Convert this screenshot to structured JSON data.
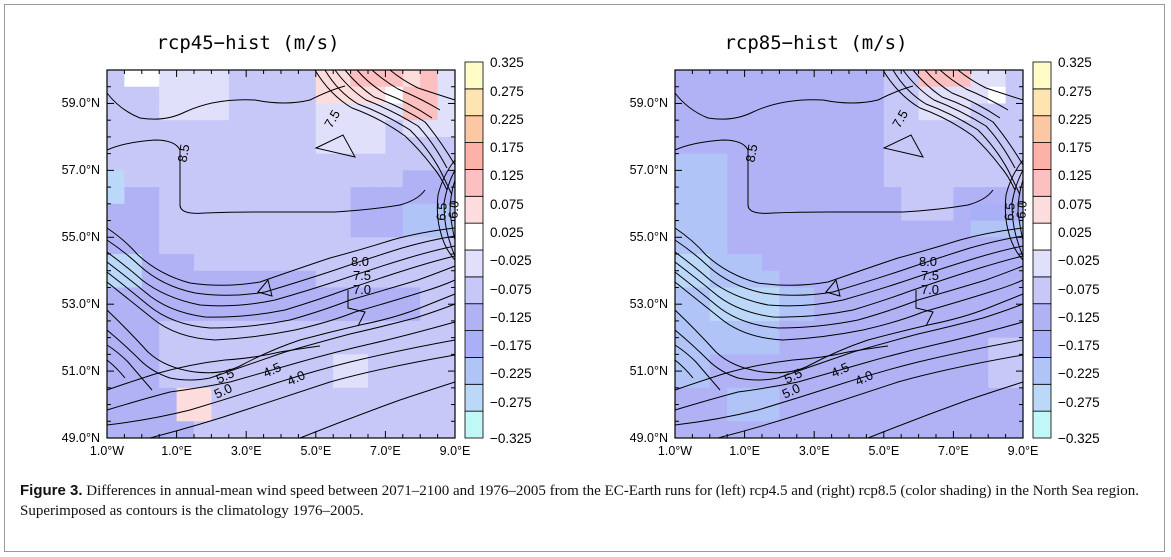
{
  "chart_data": [
    {
      "type": "heatmap",
      "title": "rcp45−hist (m/s)",
      "x_tick_labels": [
        "1.0°W",
        "1.0°E",
        "3.0°E",
        "5.0°E",
        "7.0°E",
        "9.0°E"
      ],
      "y_tick_labels": [
        "49.0°N",
        "51.0°N",
        "53.0°N",
        "55.0°N",
        "57.0°N",
        "59.0°N"
      ],
      "xlim": [
        -1.0,
        9.0
      ],
      "ylim": [
        49.0,
        60.0
      ],
      "grid_x": [
        -1.0,
        -0.5,
        0.0,
        0.5,
        1.0,
        1.5,
        2.0,
        2.5,
        3.0,
        3.5,
        4.0,
        4.5,
        5.0,
        5.5,
        6.0,
        6.5,
        7.0,
        7.5,
        8.0,
        8.5,
        9.0
      ],
      "grid_y": [
        49.0,
        49.5,
        50.0,
        50.5,
        51.0,
        51.5,
        52.0,
        52.5,
        53.0,
        53.5,
        54.0,
        54.5,
        55.0,
        55.5,
        56.0,
        56.5,
        57.0,
        57.5,
        58.0,
        58.5,
        59.0,
        59.5,
        60.0
      ],
      "cell_units": "m/s",
      "cells_note": "rows from north (60N) to south (49N), 0.5 degree cells",
      "cells": [
        [
          -0.09,
          0.01,
          0.01,
          -0.03,
          -0.03,
          -0.03,
          -0.03,
          -0.09,
          -0.09,
          -0.09,
          -0.09,
          -0.09,
          0.04,
          0.07,
          0.09,
          0.09,
          0.09,
          0.07,
          0.09,
          -0.03
        ],
        [
          -0.09,
          -0.09,
          -0.09,
          -0.03,
          -0.03,
          -0.03,
          -0.03,
          -0.09,
          -0.09,
          -0.09,
          -0.09,
          -0.09,
          0.04,
          0.04,
          0.04,
          0.04,
          0.02,
          0.12,
          0.12,
          -0.03
        ],
        [
          -0.09,
          -0.09,
          -0.09,
          -0.03,
          -0.03,
          -0.03,
          -0.03,
          -0.09,
          -0.09,
          -0.09,
          -0.09,
          -0.09,
          -0.03,
          -0.03,
          -0.03,
          -0.03,
          -0.03,
          0.12,
          0.12,
          -0.03
        ],
        [
          -0.09,
          -0.09,
          -0.09,
          -0.09,
          -0.09,
          -0.09,
          -0.09,
          -0.09,
          -0.09,
          -0.09,
          -0.09,
          -0.09,
          -0.03,
          -0.03,
          -0.03,
          -0.03,
          -0.09,
          -0.03,
          -0.03,
          -0.03
        ],
        [
          -0.09,
          -0.09,
          -0.09,
          -0.09,
          -0.09,
          -0.09,
          -0.09,
          -0.09,
          -0.09,
          -0.09,
          -0.09,
          -0.09,
          -0.03,
          -0.03,
          -0.03,
          -0.03,
          -0.09,
          -0.09,
          -0.09,
          -0.09
        ],
        [
          -0.09,
          -0.09,
          -0.09,
          -0.09,
          -0.09,
          -0.09,
          -0.09,
          -0.09,
          -0.09,
          -0.09,
          -0.09,
          -0.09,
          -0.09,
          -0.09,
          -0.09,
          -0.09,
          -0.09,
          -0.09,
          -0.09,
          -0.09
        ],
        [
          -0.3,
          -0.09,
          -0.09,
          -0.09,
          -0.09,
          -0.09,
          -0.09,
          -0.09,
          -0.09,
          -0.09,
          -0.09,
          -0.09,
          -0.09,
          -0.09,
          -0.09,
          -0.09,
          -0.09,
          -0.15,
          -0.15,
          -0.15
        ],
        [
          -0.3,
          -0.15,
          -0.15,
          -0.09,
          -0.09,
          -0.09,
          -0.09,
          -0.09,
          -0.09,
          -0.09,
          -0.09,
          -0.09,
          -0.09,
          -0.09,
          -0.15,
          -0.15,
          -0.15,
          -0.15,
          -0.15,
          -0.15
        ],
        [
          -0.15,
          -0.15,
          -0.15,
          -0.09,
          -0.09,
          -0.09,
          -0.09,
          -0.09,
          -0.09,
          -0.09,
          -0.09,
          -0.09,
          -0.09,
          -0.09,
          -0.15,
          -0.15,
          -0.15,
          -0.26,
          -0.26,
          -0.26
        ],
        [
          -0.15,
          -0.15,
          -0.15,
          -0.09,
          -0.09,
          -0.09,
          -0.09,
          -0.09,
          -0.09,
          -0.09,
          -0.09,
          -0.09,
          -0.09,
          -0.09,
          -0.15,
          -0.15,
          -0.15,
          -0.26,
          -0.26,
          -0.26
        ],
        [
          -0.15,
          -0.15,
          -0.15,
          -0.09,
          -0.09,
          -0.09,
          -0.09,
          -0.09,
          -0.09,
          -0.09,
          -0.09,
          -0.09,
          -0.09,
          -0.09,
          -0.09,
          -0.09,
          -0.09,
          -0.09,
          -0.09,
          -0.09
        ],
        [
          -0.3,
          -0.3,
          -0.15,
          -0.15,
          -0.15,
          -0.09,
          -0.09,
          -0.09,
          -0.09,
          -0.09,
          -0.09,
          -0.09,
          -0.09,
          -0.09,
          -0.09,
          -0.09,
          -0.09,
          -0.09,
          -0.09,
          -0.09
        ],
        [
          -0.3,
          -0.3,
          -0.15,
          -0.15,
          -0.15,
          -0.15,
          -0.15,
          -0.15,
          -0.15,
          -0.15,
          -0.15,
          -0.15,
          -0.09,
          -0.09,
          -0.09,
          -0.09,
          -0.09,
          -0.09,
          -0.09,
          -0.09
        ],
        [
          -0.15,
          -0.15,
          -0.15,
          -0.15,
          -0.15,
          -0.15,
          -0.15,
          -0.15,
          -0.15,
          -0.15,
          -0.15,
          -0.15,
          -0.15,
          -0.15,
          -0.15,
          -0.15,
          -0.15,
          -0.15,
          -0.09,
          -0.09
        ],
        [
          -0.15,
          -0.15,
          -0.15,
          -0.15,
          -0.15,
          -0.15,
          -0.15,
          -0.15,
          -0.15,
          -0.15,
          -0.15,
          -0.15,
          -0.15,
          -0.15,
          -0.15,
          -0.15,
          -0.15,
          -0.15,
          -0.09,
          -0.09
        ],
        [
          -0.15,
          -0.15,
          -0.15,
          -0.09,
          -0.09,
          -0.09,
          -0.09,
          -0.09,
          -0.09,
          -0.09,
          -0.09,
          -0.09,
          -0.09,
          -0.09,
          -0.09,
          -0.09,
          -0.09,
          -0.09,
          -0.09,
          -0.09
        ],
        [
          -0.15,
          -0.15,
          -0.15,
          -0.09,
          -0.09,
          -0.09,
          -0.09,
          -0.09,
          -0.09,
          -0.09,
          -0.09,
          -0.09,
          -0.09,
          -0.09,
          -0.09,
          -0.09,
          -0.09,
          -0.09,
          -0.09,
          -0.09
        ],
        [
          -0.15,
          -0.15,
          -0.15,
          -0.09,
          -0.09,
          -0.09,
          -0.09,
          -0.09,
          -0.09,
          -0.09,
          -0.09,
          -0.09,
          -0.09,
          -0.03,
          -0.03,
          -0.09,
          -0.09,
          -0.09,
          -0.09,
          -0.09
        ],
        [
          -0.15,
          -0.15,
          -0.15,
          -0.09,
          -0.09,
          -0.09,
          -0.09,
          -0.09,
          -0.09,
          -0.09,
          -0.09,
          -0.09,
          -0.09,
          -0.03,
          -0.03,
          -0.09,
          -0.09,
          -0.09,
          -0.09,
          -0.09
        ],
        [
          -0.15,
          -0.15,
          -0.15,
          -0.15,
          0.07,
          0.07,
          -0.09,
          -0.09,
          -0.09,
          -0.09,
          -0.09,
          -0.09,
          -0.09,
          -0.09,
          -0.09,
          -0.09,
          -0.09,
          -0.09,
          -0.09,
          -0.09
        ],
        [
          -0.15,
          -0.15,
          -0.15,
          -0.15,
          0.07,
          0.07,
          -0.09,
          -0.09,
          -0.09,
          -0.09,
          -0.09,
          -0.09,
          -0.09,
          -0.09,
          -0.09,
          -0.09,
          -0.09,
          -0.09,
          -0.09,
          -0.09
        ],
        [
          -0.15,
          -0.15,
          -0.15,
          -0.15,
          -0.15,
          -0.09,
          -0.09,
          -0.09,
          -0.09,
          -0.09,
          -0.09,
          -0.09,
          -0.09,
          -0.09,
          -0.09,
          -0.09,
          -0.09,
          -0.09,
          -0.09,
          -0.09
        ]
      ],
      "contour_labels": [
        "7.5",
        "8.5",
        "6.0",
        "6.5",
        "8.0",
        "7.5",
        "7.0",
        "5.5",
        "5.0",
        "4.5",
        "4.0"
      ]
    },
    {
      "type": "heatmap",
      "title": "rcp85−hist (m/s)",
      "x_tick_labels": [
        "1.0°W",
        "1.0°E",
        "3.0°E",
        "5.0°E",
        "7.0°E",
        "9.0°E"
      ],
      "y_tick_labels": [
        "49.0°N",
        "51.0°N",
        "53.0°N",
        "55.0°N",
        "57.0°N",
        "59.0°N"
      ],
      "xlim": [
        -1.0,
        9.0
      ],
      "ylim": [
        49.0,
        60.0
      ],
      "grid_x": [
        -1.0,
        -0.5,
        0.0,
        0.5,
        1.0,
        1.5,
        2.0,
        2.5,
        3.0,
        3.5,
        4.0,
        4.5,
        5.0,
        5.5,
        6.0,
        6.5,
        7.0,
        7.5,
        8.0,
        8.5,
        9.0
      ],
      "grid_y": [
        49.0,
        49.5,
        50.0,
        50.5,
        51.0,
        51.5,
        52.0,
        52.5,
        53.0,
        53.5,
        54.0,
        54.5,
        55.0,
        55.5,
        56.0,
        56.5,
        57.0,
        57.5,
        58.0,
        58.5,
        59.0,
        59.5,
        60.0
      ],
      "cell_units": "m/s",
      "cells_note": "rows from north (60N) to south (49N), 0.5 degree cells",
      "cells": [
        [
          -0.15,
          -0.15,
          -0.15,
          -0.15,
          -0.15,
          -0.15,
          -0.15,
          -0.15,
          -0.15,
          -0.15,
          -0.15,
          -0.15,
          -0.09,
          -0.09,
          0.12,
          0.12,
          0.12,
          -0.03,
          -0.03,
          -0.09
        ],
        [
          -0.15,
          -0.15,
          -0.15,
          -0.15,
          -0.15,
          -0.15,
          -0.15,
          -0.15,
          -0.15,
          -0.15,
          -0.15,
          -0.15,
          -0.09,
          -0.09,
          -0.03,
          -0.03,
          -0.03,
          -0.03,
          0.01,
          -0.09
        ],
        [
          -0.15,
          -0.15,
          -0.15,
          -0.15,
          -0.15,
          -0.15,
          -0.15,
          -0.15,
          -0.15,
          -0.15,
          -0.15,
          -0.15,
          -0.09,
          -0.09,
          -0.03,
          -0.03,
          -0.03,
          -0.09,
          -0.09,
          -0.09
        ],
        [
          -0.15,
          -0.15,
          -0.15,
          -0.15,
          -0.15,
          -0.15,
          -0.15,
          -0.15,
          -0.15,
          -0.15,
          -0.15,
          -0.15,
          -0.09,
          -0.09,
          -0.09,
          -0.09,
          -0.09,
          -0.09,
          -0.09,
          -0.09
        ],
        [
          -0.15,
          -0.15,
          -0.15,
          -0.15,
          -0.15,
          -0.15,
          -0.15,
          -0.15,
          -0.15,
          -0.15,
          -0.15,
          -0.15,
          -0.09,
          -0.09,
          -0.09,
          -0.09,
          -0.09,
          -0.09,
          -0.09,
          -0.09
        ],
        [
          -0.26,
          -0.26,
          -0.26,
          -0.15,
          -0.15,
          -0.15,
          -0.15,
          -0.15,
          -0.15,
          -0.15,
          -0.15,
          -0.15,
          -0.09,
          -0.09,
          -0.09,
          -0.09,
          -0.09,
          -0.09,
          -0.09,
          -0.09
        ],
        [
          -0.26,
          -0.26,
          -0.26,
          -0.15,
          -0.15,
          -0.15,
          -0.15,
          -0.15,
          -0.15,
          -0.15,
          -0.15,
          -0.15,
          -0.09,
          -0.09,
          -0.09,
          -0.09,
          -0.09,
          -0.09,
          -0.09,
          -0.09
        ],
        [
          -0.26,
          -0.26,
          -0.26,
          -0.15,
          -0.15,
          -0.15,
          -0.15,
          -0.15,
          -0.15,
          -0.15,
          -0.15,
          -0.15,
          -0.15,
          -0.09,
          -0.09,
          -0.09,
          -0.15,
          -0.15,
          -0.15,
          -0.15
        ],
        [
          -0.26,
          -0.26,
          -0.26,
          -0.15,
          -0.15,
          -0.15,
          -0.15,
          -0.15,
          -0.15,
          -0.15,
          -0.15,
          -0.15,
          -0.15,
          -0.09,
          -0.09,
          -0.09,
          -0.15,
          -0.2,
          -0.2,
          -0.2
        ],
        [
          -0.26,
          -0.26,
          -0.26,
          -0.15,
          -0.15,
          -0.15,
          -0.15,
          -0.15,
          -0.15,
          -0.15,
          -0.15,
          -0.15,
          -0.15,
          -0.15,
          -0.15,
          -0.15,
          -0.15,
          -0.26,
          -0.26,
          -0.26
        ],
        [
          -0.26,
          -0.26,
          -0.26,
          -0.15,
          -0.15,
          -0.15,
          -0.15,
          -0.15,
          -0.15,
          -0.15,
          -0.15,
          -0.15,
          -0.15,
          -0.15,
          -0.15,
          -0.15,
          -0.15,
          -0.15,
          -0.15,
          -0.15
        ],
        [
          -0.3,
          -0.3,
          -0.26,
          -0.26,
          -0.26,
          -0.15,
          -0.15,
          -0.15,
          -0.15,
          -0.15,
          -0.15,
          -0.15,
          -0.15,
          -0.15,
          -0.15,
          -0.15,
          -0.15,
          -0.15,
          -0.15,
          -0.15
        ],
        [
          -0.3,
          -0.3,
          -0.26,
          -0.26,
          -0.26,
          -0.26,
          -0.15,
          -0.15,
          -0.15,
          -0.15,
          -0.15,
          -0.15,
          -0.15,
          -0.15,
          -0.15,
          -0.15,
          -0.15,
          -0.15,
          -0.15,
          -0.15
        ],
        [
          -0.26,
          -0.26,
          -0.3,
          -0.3,
          -0.3,
          -0.3,
          -0.26,
          -0.26,
          -0.15,
          -0.15,
          -0.15,
          -0.15,
          -0.15,
          -0.15,
          -0.15,
          -0.15,
          -0.15,
          -0.15,
          -0.15,
          -0.15
        ],
        [
          -0.26,
          -0.26,
          -0.3,
          -0.3,
          -0.3,
          -0.3,
          -0.26,
          -0.26,
          -0.15,
          -0.15,
          -0.15,
          -0.15,
          -0.15,
          -0.15,
          -0.15,
          -0.15,
          -0.15,
          -0.15,
          -0.15,
          -0.15
        ],
        [
          -0.26,
          -0.26,
          -0.26,
          -0.26,
          -0.26,
          -0.26,
          -0.15,
          -0.15,
          -0.15,
          -0.15,
          -0.15,
          -0.15,
          -0.15,
          -0.15,
          -0.15,
          -0.15,
          -0.15,
          -0.15,
          -0.15,
          -0.15
        ],
        [
          -0.26,
          -0.26,
          -0.26,
          -0.26,
          -0.26,
          -0.26,
          -0.15,
          -0.15,
          -0.15,
          -0.15,
          -0.15,
          -0.15,
          -0.15,
          -0.15,
          -0.15,
          -0.15,
          -0.15,
          -0.15,
          -0.09,
          -0.09
        ],
        [
          -0.26,
          -0.26,
          -0.15,
          -0.15,
          -0.15,
          -0.15,
          -0.15,
          -0.15,
          -0.15,
          -0.15,
          -0.15,
          -0.15,
          -0.15,
          -0.15,
          -0.15,
          -0.15,
          -0.15,
          -0.15,
          -0.09,
          -0.09
        ],
        [
          -0.26,
          -0.26,
          -0.15,
          -0.15,
          -0.15,
          -0.15,
          -0.15,
          -0.15,
          -0.15,
          -0.15,
          -0.15,
          -0.15,
          -0.15,
          -0.15,
          -0.15,
          -0.15,
          -0.15,
          -0.15,
          -0.09,
          -0.09
        ],
        [
          -0.15,
          -0.15,
          -0.15,
          -0.26,
          -0.26,
          -0.26,
          -0.15,
          -0.15,
          -0.15,
          -0.15,
          -0.15,
          -0.15,
          -0.15,
          -0.15,
          -0.15,
          -0.15,
          -0.15,
          -0.15,
          -0.15,
          -0.15
        ],
        [
          -0.15,
          -0.15,
          -0.15,
          -0.26,
          -0.26,
          -0.26,
          -0.15,
          -0.15,
          -0.15,
          -0.15,
          -0.15,
          -0.15,
          -0.15,
          -0.15,
          -0.15,
          -0.15,
          -0.15,
          -0.15,
          -0.15,
          -0.15
        ],
        [
          -0.15,
          -0.15,
          -0.15,
          -0.15,
          -0.15,
          -0.15,
          -0.15,
          -0.15,
          -0.15,
          -0.15,
          -0.15,
          -0.15,
          -0.15,
          -0.15,
          -0.15,
          -0.15,
          -0.15,
          -0.15,
          -0.15,
          -0.15
        ]
      ],
      "contour_labels": [
        "7.5",
        "8.5",
        "6.0",
        "6.5",
        "8.0",
        "7.5",
        "7.0",
        "5.5",
        "5.0",
        "4.5",
        "4.0"
      ]
    }
  ],
  "colorbar": {
    "labels": [
      "0.325",
      "0.275",
      "0.225",
      "0.175",
      "0.125",
      "0.075",
      "0.025",
      "−0.025",
      "−0.075",
      "−0.125",
      "−0.175",
      "−0.225",
      "−0.275",
      "−0.325"
    ],
    "levels": [
      -0.325,
      -0.275,
      -0.225,
      -0.175,
      -0.125,
      -0.075,
      -0.025,
      0.025,
      0.075,
      0.125,
      0.175,
      0.225,
      0.275,
      0.325
    ],
    "colors_bottom_to_top": [
      "#c0f8f8",
      "#bcd8f8",
      "#b0c4f8",
      "#aab0f8",
      "#b0b2f5",
      "#c8c8f8",
      "#e0e0fa",
      "#ffffff",
      "#fcdcdc",
      "#fcc0c0",
      "#fcb2a8",
      "#fcc8a4",
      "#fde4b0",
      "#fffcc8"
    ]
  },
  "caption": {
    "label": "Figure 3.",
    "text": " Differences in annual-mean wind speed between 2071–2100 and 1976–2005 from the EC-Earth runs for (left) rcp4.5 and (right) rcp8.5 (color shading) in the North Sea region. Superimposed as contours is the climatology 1976–2005."
  }
}
